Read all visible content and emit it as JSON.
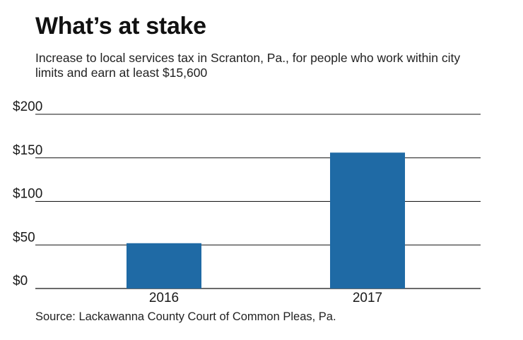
{
  "chart_data": {
    "type": "bar",
    "title": "What’s at stake",
    "subtitle": "Increase to local services tax in Scranton, Pa., for people who work within city limits and earn at least $15,600",
    "source": "Source: Lackawanna County Court of Common Pleas, Pa.",
    "categories": [
      "2016",
      "2017"
    ],
    "values": [
      52,
      156
    ],
    "ylim": [
      0,
      200
    ],
    "yticks": [
      0,
      50,
      100,
      150,
      200
    ],
    "ytick_labels": [
      "$0",
      "$50",
      "$100",
      "$150",
      "$200"
    ],
    "grid": true,
    "bar_color": "#1f6aa5",
    "grid_color": "#111111"
  }
}
